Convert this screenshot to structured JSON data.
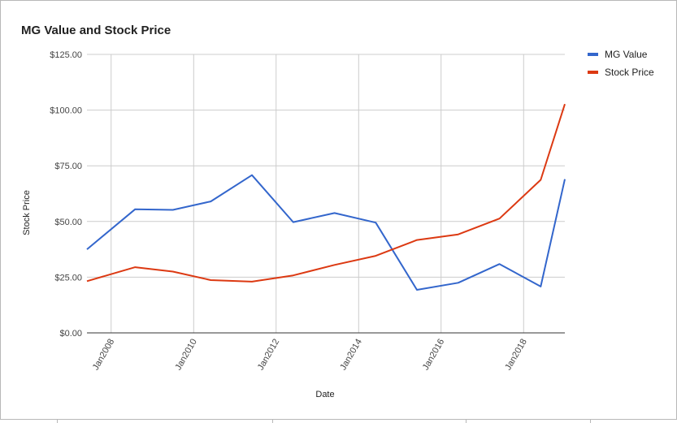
{
  "chart_data": {
    "type": "line",
    "title": "MG Value and Stock Price",
    "xlabel": "Date",
    "ylabel": "Stock Price",
    "ylim": [
      0,
      125
    ],
    "xlim": [
      "2007-06-01",
      "2019-01-01"
    ],
    "y_ticks": [
      "$0.00",
      "$25.00",
      "$50.00",
      "$75.00",
      "$100.00",
      "$125.00"
    ],
    "y_tick_values": [
      0,
      25,
      50,
      75,
      100,
      125
    ],
    "x_ticks": [
      "Jan2008",
      "Jan2010",
      "Jan2012",
      "Jan2014",
      "Jan2016",
      "Jan2018"
    ],
    "x_tick_dates": [
      "2008-01-01",
      "2010-01-01",
      "2012-01-01",
      "2014-01-01",
      "2016-01-01",
      "2018-01-01"
    ],
    "grid": true,
    "legend_position": "right",
    "series": [
      {
        "name": "MG Value",
        "color": "#3366cc",
        "points": [
          {
            "x": "2007-06-01",
            "y": 37.5
          },
          {
            "x": "2008-08-01",
            "y": 55.5
          },
          {
            "x": "2009-07-01",
            "y": 55.2
          },
          {
            "x": "2010-06-01",
            "y": 59.0
          },
          {
            "x": "2011-06-01",
            "y": 70.8
          },
          {
            "x": "2012-06-01",
            "y": 49.7
          },
          {
            "x": "2013-06-01",
            "y": 53.8
          },
          {
            "x": "2014-06-01",
            "y": 49.5
          },
          {
            "x": "2015-06-01",
            "y": 19.3
          },
          {
            "x": "2016-06-01",
            "y": 22.5
          },
          {
            "x": "2017-06-01",
            "y": 30.9
          },
          {
            "x": "2018-06-01",
            "y": 20.8
          },
          {
            "x": "2019-01-01",
            "y": 69.0
          }
        ]
      },
      {
        "name": "Stock Price",
        "color": "#dc3912",
        "points": [
          {
            "x": "2007-06-01",
            "y": 23.2
          },
          {
            "x": "2008-08-01",
            "y": 29.5
          },
          {
            "x": "2009-07-01",
            "y": 27.5
          },
          {
            "x": "2010-06-01",
            "y": 23.7
          },
          {
            "x": "2011-06-01",
            "y": 23.0
          },
          {
            "x": "2012-06-01",
            "y": 25.8
          },
          {
            "x": "2013-06-01",
            "y": 30.5
          },
          {
            "x": "2014-06-01",
            "y": 34.6
          },
          {
            "x": "2015-06-01",
            "y": 41.7
          },
          {
            "x": "2016-06-01",
            "y": 44.2
          },
          {
            "x": "2017-06-01",
            "y": 51.3
          },
          {
            "x": "2018-06-01",
            "y": 68.7
          },
          {
            "x": "2019-01-01",
            "y": 102.7
          }
        ]
      }
    ]
  }
}
